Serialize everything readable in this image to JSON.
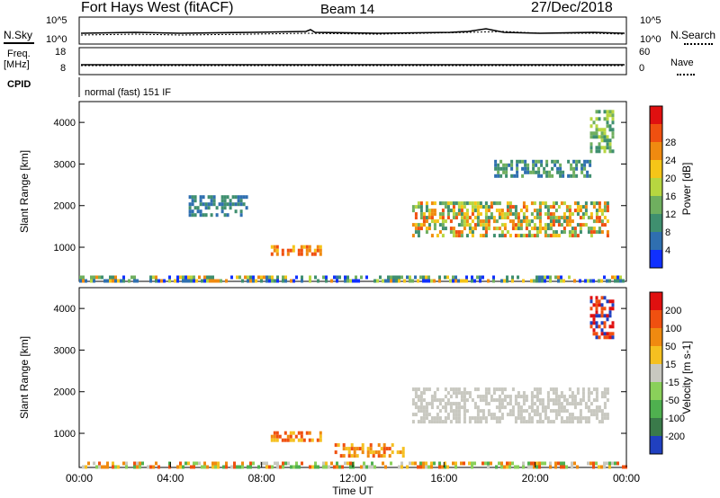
{
  "header": {
    "site": "Fort Hays West (fitACF)",
    "beam": "Beam 14",
    "date": "27/Dec/2018"
  },
  "noise_panel": {
    "left_label": "N.Sky",
    "right_label": "N.Search",
    "left_tick_top": "10^5",
    "left_tick_bottom": "10^0",
    "right_tick_top": "10^5",
    "right_tick_bottom": "10^0"
  },
  "freq_panel": {
    "left_label_1": "Freq.",
    "left_label_2": "[MHz]",
    "left_tick_top": "18",
    "left_tick_bottom": "8",
    "right_label": "Nave",
    "right_tick_top": "60",
    "right_tick_bottom": "0"
  },
  "cpid_panel": {
    "label": "CPID",
    "mode": "normal (fast) 151 IF"
  },
  "chart_data": [
    {
      "type": "heatmap",
      "name": "power",
      "ylabel": "Slant Range [km]",
      "ylim": [
        180,
        4500
      ],
      "yticks": [
        "1000",
        "2000",
        "3000",
        "4000"
      ],
      "colorbar_label": "Power [dB]",
      "colorbar_ticks": [
        "4",
        "8",
        "12",
        "16",
        "20",
        "24",
        "28"
      ],
      "colors": [
        "#1030ff",
        "#2f6fb0",
        "#3f8f6f",
        "#6faf5f",
        "#b7d640",
        "#f5c518",
        "#f08a10",
        "#f05010",
        "#e01010"
      ],
      "regions": [
        {
          "x": [
            0.0,
            24.0
          ],
          "range": [
            200,
            320
          ],
          "level": "mixed"
        },
        {
          "x": [
            8.4,
            10.6
          ],
          "range": [
            850,
            1050
          ],
          "level": "orange"
        },
        {
          "x": [
            4.8,
            7.3
          ],
          "range": [
            1800,
            2250
          ],
          "level": "blue"
        },
        {
          "x": [
            14.6,
            23.2
          ],
          "range": [
            1300,
            2100
          ],
          "level": "green-orange"
        },
        {
          "x": [
            18.2,
            22.4
          ],
          "range": [
            2700,
            3100
          ],
          "level": "blue-green"
        },
        {
          "x": [
            22.4,
            23.4
          ],
          "range": [
            3300,
            4300
          ],
          "level": "green"
        }
      ]
    },
    {
      "type": "heatmap",
      "name": "velocity",
      "ylabel": "Slant Range [km]",
      "ylim": [
        180,
        4500
      ],
      "yticks": [
        "1000",
        "2000",
        "3000",
        "4000"
      ],
      "xlabel": "Time UT",
      "xticks": [
        "00:00",
        "04:00",
        "08:00",
        "12:00",
        "16:00",
        "20:00",
        "00:00"
      ],
      "colorbar_label": "Velocity [m s-1]",
      "colorbar_ticks": [
        "200",
        "100",
        "50",
        "15",
        "-15",
        "-50",
        "-100",
        "-200"
      ],
      "colors": [
        "#2040c0",
        "#3a7a4a",
        "#4fb04f",
        "#8ad05a",
        "#c8c8c0",
        "#f5c020",
        "#f08a10",
        "#f05010",
        "#e01010"
      ],
      "regions": [
        {
          "x": [
            0.0,
            24.0
          ],
          "range": [
            200,
            320
          ],
          "level": "green-orange"
        },
        {
          "x": [
            8.4,
            10.6
          ],
          "range": [
            850,
            1050
          ],
          "level": "orange"
        },
        {
          "x": [
            11.2,
            14.2
          ],
          "range": [
            500,
            760
          ],
          "level": "orange"
        },
        {
          "x": [
            14.6,
            23.2
          ],
          "range": [
            1300,
            2100
          ],
          "level": "grey"
        },
        {
          "x": [
            22.4,
            23.4
          ],
          "range": [
            3300,
            4300
          ],
          "level": "red-blue"
        }
      ]
    }
  ]
}
